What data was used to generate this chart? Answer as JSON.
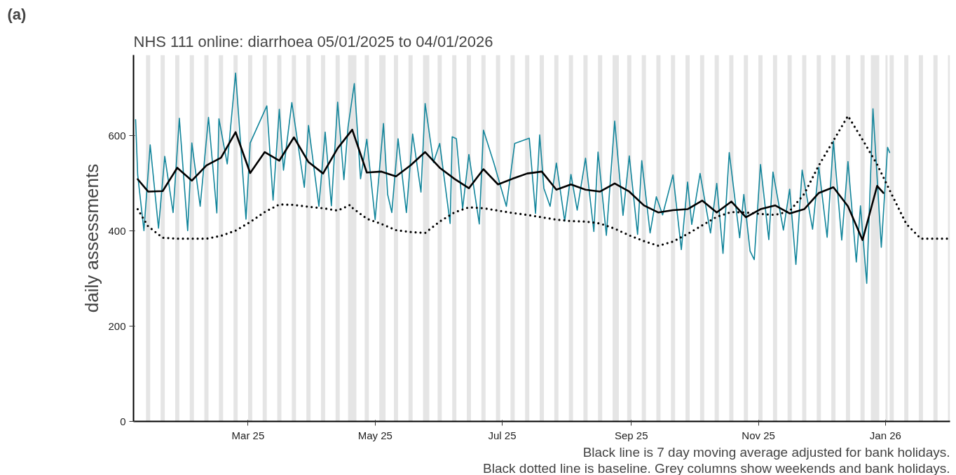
{
  "chart_data": {
    "type": "line",
    "title": "NHS 111 online: diarrhoea 05/01/2025 to 04/01/2026",
    "ylabel": "daily assessments",
    "annotations": [
      "(a)",
      "Black line is 7 day moving average adjusted for bank holidays.",
      "Black dotted line is baseline. Grey columns show weekends and bank holidays."
    ],
    "xlim": [
      "2025-01-05",
      "2026-02-01"
    ],
    "xticks": [
      {
        "value": "2025-03-01",
        "label": "Mar 25"
      },
      {
        "value": "2025-05-01",
        "label": "May 25"
      },
      {
        "value": "2025-07-01",
        "label": "Jul 25"
      },
      {
        "value": "2025-09-01",
        "label": "Sep 25"
      },
      {
        "value": "2025-11-01",
        "label": "Nov 25"
      },
      {
        "value": "2026-01-01",
        "label": "Jan 26"
      }
    ],
    "ylim": [
      0,
      770
    ],
    "yticks": [
      0,
      200,
      400,
      600
    ],
    "grid": false,
    "marker": "none",
    "series": [
      {
        "color": "#12859b",
        "line_style": "solid",
        "x": [
          "2025-01-06",
          "2025-01-07",
          "2025-01-10",
          "2025-01-13",
          "2025-01-17",
          "2025-01-20",
          "2025-01-24",
          "2025-01-27",
          "2025-01-31",
          "2025-02-02",
          "2025-02-06",
          "2025-02-10",
          "2025-02-14",
          "2025-02-15",
          "2025-02-19",
          "2025-02-23",
          "2025-02-28",
          "2025-03-02",
          "2025-03-10",
          "2025-03-13",
          "2025-03-16",
          "2025-03-18",
          "2025-03-22",
          "2025-03-28",
          "2025-03-30",
          "2025-04-04",
          "2025-04-07",
          "2025-04-10",
          "2025-04-13",
          "2025-04-16",
          "2025-04-18",
          "2025-04-21",
          "2025-04-24",
          "2025-04-27",
          "2025-05-01",
          "2025-05-05",
          "2025-05-07",
          "2025-05-09",
          "2025-05-12",
          "2025-05-16",
          "2025-05-19",
          "2025-05-23",
          "2025-05-25",
          "2025-05-29",
          "2025-06-01",
          "2025-06-06",
          "2025-06-07",
          "2025-06-09",
          "2025-06-12",
          "2025-06-15",
          "2025-06-20",
          "2025-06-22",
          "2025-06-27",
          "2025-07-03",
          "2025-07-07",
          "2025-07-14",
          "2025-07-17",
          "2025-07-19",
          "2025-07-21",
          "2025-07-24",
          "2025-07-27",
          "2025-07-31",
          "2025-08-03",
          "2025-08-06",
          "2025-08-10",
          "2025-08-14",
          "2025-08-16",
          "2025-08-20",
          "2025-08-24",
          "2025-08-28",
          "2025-08-31",
          "2025-09-04",
          "2025-09-06",
          "2025-09-10",
          "2025-09-13",
          "2025-09-16",
          "2025-09-21",
          "2025-09-25",
          "2025-09-28",
          "2025-09-30",
          "2025-10-04",
          "2025-10-09",
          "2025-10-12",
          "2025-10-15",
          "2025-10-18",
          "2025-10-23",
          "2025-10-25",
          "2025-10-28",
          "2025-10-30",
          "2025-11-02",
          "2025-11-06",
          "2025-11-08",
          "2025-11-13",
          "2025-11-16",
          "2025-11-19",
          "2025-11-22",
          "2025-11-27",
          "2025-11-30",
          "2025-12-04",
          "2025-12-07",
          "2025-12-11",
          "2025-12-14",
          "2025-12-18",
          "2025-12-20",
          "2025-12-23",
          "2025-12-26",
          "2025-12-30",
          "2026-01-02",
          "2026-01-03"
        ],
        "values": [
          634,
          518,
          401,
          581,
          406,
          557,
          439,
          637,
          401,
          585,
          452,
          639,
          438,
          636,
          541,
          732,
          425,
          585,
          663,
          465,
          656,
          528,
          670,
          492,
          622,
          452,
          608,
          453,
          671,
          508,
          619,
          710,
          510,
          593,
          424,
          626,
          477,
          439,
          594,
          439,
          604,
          482,
          668,
          544,
          584,
          416,
          598,
          594,
          447,
          561,
          415,
          612,
          543,
          452,
          584,
          595,
          437,
          602,
          490,
          452,
          543,
          421,
          519,
          444,
          553,
          399,
          566,
          391,
          631,
          433,
          558,
          393,
          548,
          396,
          472,
          434,
          518,
          361,
          503,
          414,
          521,
          396,
          500,
          353,
          565,
          386,
          477,
          358,
          340,
          540,
          382,
          524,
          402,
          488,
          330,
          528,
          404,
          534,
          387,
          589,
          381,
          546,
          335,
          453,
          290,
          657,
          366,
          576,
          565
        ]
      },
      {
        "color": "#000000",
        "line_style": "solid",
        "x": [
          "2025-01-07",
          "2025-01-12",
          "2025-01-19",
          "2025-01-26",
          "2025-02-02",
          "2025-02-09",
          "2025-02-16",
          "2025-02-23",
          "2025-03-02",
          "2025-03-09",
          "2025-03-16",
          "2025-03-23",
          "2025-03-30",
          "2025-04-06",
          "2025-04-13",
          "2025-04-20",
          "2025-04-27",
          "2025-05-04",
          "2025-05-11",
          "2025-05-18",
          "2025-05-25",
          "2025-06-01",
          "2025-06-08",
          "2025-06-15",
          "2025-06-22",
          "2025-06-29",
          "2025-07-06",
          "2025-07-13",
          "2025-07-20",
          "2025-07-27",
          "2025-08-03",
          "2025-08-10",
          "2025-08-17",
          "2025-08-24",
          "2025-08-31",
          "2025-09-07",
          "2025-09-14",
          "2025-09-21",
          "2025-09-28",
          "2025-10-05",
          "2025-10-12",
          "2025-10-19",
          "2025-10-26",
          "2025-11-02",
          "2025-11-09",
          "2025-11-16",
          "2025-11-23",
          "2025-11-30",
          "2025-12-07",
          "2025-12-14",
          "2025-12-21",
          "2025-12-28",
          "2025-12-31"
        ],
        "values": [
          509,
          483,
          484,
          533,
          506,
          538,
          554,
          608,
          522,
          566,
          548,
          597,
          545,
          521,
          574,
          613,
          523,
          525,
          515,
          538,
          566,
          533,
          510,
          490,
          530,
          498,
          510,
          521,
          525,
          487,
          498,
          487,
          483,
          500,
          483,
          454,
          439,
          444,
          446,
          464,
          439,
          462,
          429,
          446,
          454,
          437,
          446,
          480,
          492,
          452,
          381,
          495,
          480
        ]
      },
      {
        "color": "#000000",
        "line_style": "dotted",
        "x": [
          "2025-01-07",
          "2025-01-12",
          "2025-01-19",
          "2025-01-26",
          "2025-02-02",
          "2025-02-09",
          "2025-02-16",
          "2025-02-23",
          "2025-03-02",
          "2025-03-09",
          "2025-03-16",
          "2025-03-23",
          "2025-03-30",
          "2025-04-06",
          "2025-04-13",
          "2025-04-19",
          "2025-04-20",
          "2025-04-27",
          "2025-05-04",
          "2025-05-11",
          "2025-05-18",
          "2025-05-25",
          "2025-06-01",
          "2025-06-08",
          "2025-06-15",
          "2025-06-22",
          "2025-06-29",
          "2025-07-06",
          "2025-07-13",
          "2025-07-20",
          "2025-07-27",
          "2025-08-03",
          "2025-08-10",
          "2025-08-17",
          "2025-08-24",
          "2025-08-31",
          "2025-09-07",
          "2025-09-14",
          "2025-09-21",
          "2025-09-28",
          "2025-10-05",
          "2025-10-12",
          "2025-10-19",
          "2025-10-26",
          "2025-11-02",
          "2025-11-09",
          "2025-11-16",
          "2025-11-23",
          "2025-11-30",
          "2025-12-07",
          "2025-12-14",
          "2025-12-21",
          "2025-12-28",
          "2026-01-04",
          "2026-01-11",
          "2026-01-18",
          "2026-01-25",
          "2026-01-31"
        ],
        "values": [
          446,
          410,
          386,
          384,
          384,
          384,
          390,
          401,
          419,
          440,
          456,
          455,
          451,
          448,
          443,
          455,
          449,
          426,
          415,
          402,
          398,
          396,
          420,
          439,
          450,
          448,
          443,
          438,
          434,
          429,
          424,
          421,
          420,
          416,
          405,
          391,
          379,
          369,
          378,
          394,
          412,
          430,
          440,
          439,
          436,
          434,
          442,
          478,
          538,
          590,
          642,
          592,
          540,
          477,
          415,
          384,
          384,
          384
        ]
      }
    ],
    "bands": [
      {
        "axis": "x",
        "from": "2025-01-11",
        "to": "2025-01-13",
        "color": "#e5e5e5"
      },
      {
        "axis": "x",
        "from": "2025-01-18",
        "to": "2025-01-20",
        "color": "#e5e5e5"
      },
      {
        "axis": "x",
        "from": "2025-01-25",
        "to": "2025-01-27",
        "color": "#e5e5e5"
      },
      {
        "axis": "x",
        "from": "2025-02-01",
        "to": "2025-02-03",
        "color": "#e5e5e5"
      },
      {
        "axis": "x",
        "from": "2025-02-08",
        "to": "2025-02-10",
        "color": "#e5e5e5"
      },
      {
        "axis": "x",
        "from": "2025-02-15",
        "to": "2025-02-17",
        "color": "#e5e5e5"
      },
      {
        "axis": "x",
        "from": "2025-02-22",
        "to": "2025-02-24",
        "color": "#e5e5e5"
      },
      {
        "axis": "x",
        "from": "2025-03-01",
        "to": "2025-03-03",
        "color": "#e5e5e5"
      },
      {
        "axis": "x",
        "from": "2025-03-08",
        "to": "2025-03-10",
        "color": "#e5e5e5"
      },
      {
        "axis": "x",
        "from": "2025-03-15",
        "to": "2025-03-17",
        "color": "#e5e5e5"
      },
      {
        "axis": "x",
        "from": "2025-03-22",
        "to": "2025-03-24",
        "color": "#e5e5e5"
      },
      {
        "axis": "x",
        "from": "2025-03-29",
        "to": "2025-03-31",
        "color": "#e5e5e5"
      },
      {
        "axis": "x",
        "from": "2025-04-05",
        "to": "2025-04-07",
        "color": "#e5e5e5"
      },
      {
        "axis": "x",
        "from": "2025-04-12",
        "to": "2025-04-14",
        "color": "#e5e5e5"
      },
      {
        "axis": "x",
        "from": "2025-04-18",
        "to": "2025-04-22",
        "color": "#e5e5e5"
      },
      {
        "axis": "x",
        "from": "2025-04-26",
        "to": "2025-04-28",
        "color": "#e5e5e5"
      },
      {
        "axis": "x",
        "from": "2025-05-03",
        "to": "2025-05-06",
        "color": "#e5e5e5"
      },
      {
        "axis": "x",
        "from": "2025-05-10",
        "to": "2025-05-12",
        "color": "#e5e5e5"
      },
      {
        "axis": "x",
        "from": "2025-05-17",
        "to": "2025-05-19",
        "color": "#e5e5e5"
      },
      {
        "axis": "x",
        "from": "2025-05-24",
        "to": "2025-05-27",
        "color": "#e5e5e5"
      },
      {
        "axis": "x",
        "from": "2025-05-31",
        "to": "2025-06-02",
        "color": "#e5e5e5"
      },
      {
        "axis": "x",
        "from": "2025-06-07",
        "to": "2025-06-09",
        "color": "#e5e5e5"
      },
      {
        "axis": "x",
        "from": "2025-06-14",
        "to": "2025-06-16",
        "color": "#e5e5e5"
      },
      {
        "axis": "x",
        "from": "2025-06-21",
        "to": "2025-06-23",
        "color": "#e5e5e5"
      },
      {
        "axis": "x",
        "from": "2025-06-28",
        "to": "2025-06-30",
        "color": "#e5e5e5"
      },
      {
        "axis": "x",
        "from": "2025-07-05",
        "to": "2025-07-07",
        "color": "#e5e5e5"
      },
      {
        "axis": "x",
        "from": "2025-07-12",
        "to": "2025-07-14",
        "color": "#e5e5e5"
      },
      {
        "axis": "x",
        "from": "2025-07-19",
        "to": "2025-07-21",
        "color": "#e5e5e5"
      },
      {
        "axis": "x",
        "from": "2025-07-26",
        "to": "2025-07-28",
        "color": "#e5e5e5"
      },
      {
        "axis": "x",
        "from": "2025-08-02",
        "to": "2025-08-04",
        "color": "#e5e5e5"
      },
      {
        "axis": "x",
        "from": "2025-08-09",
        "to": "2025-08-11",
        "color": "#e5e5e5"
      },
      {
        "axis": "x",
        "from": "2025-08-16",
        "to": "2025-08-18",
        "color": "#e5e5e5"
      },
      {
        "axis": "x",
        "from": "2025-08-23",
        "to": "2025-08-26",
        "color": "#e5e5e5"
      },
      {
        "axis": "x",
        "from": "2025-08-30",
        "to": "2025-09-01",
        "color": "#e5e5e5"
      },
      {
        "axis": "x",
        "from": "2025-09-06",
        "to": "2025-09-08",
        "color": "#e5e5e5"
      },
      {
        "axis": "x",
        "from": "2025-09-13",
        "to": "2025-09-15",
        "color": "#e5e5e5"
      },
      {
        "axis": "x",
        "from": "2025-09-20",
        "to": "2025-09-22",
        "color": "#e5e5e5"
      },
      {
        "axis": "x",
        "from": "2025-09-27",
        "to": "2025-09-29",
        "color": "#e5e5e5"
      },
      {
        "axis": "x",
        "from": "2025-10-04",
        "to": "2025-10-06",
        "color": "#e5e5e5"
      },
      {
        "axis": "x",
        "from": "2025-10-11",
        "to": "2025-10-13",
        "color": "#e5e5e5"
      },
      {
        "axis": "x",
        "from": "2025-10-18",
        "to": "2025-10-20",
        "color": "#e5e5e5"
      },
      {
        "axis": "x",
        "from": "2025-10-25",
        "to": "2025-10-27",
        "color": "#e5e5e5"
      },
      {
        "axis": "x",
        "from": "2025-11-01",
        "to": "2025-11-03",
        "color": "#e5e5e5"
      },
      {
        "axis": "x",
        "from": "2025-11-08",
        "to": "2025-11-10",
        "color": "#e5e5e5"
      },
      {
        "axis": "x",
        "from": "2025-11-15",
        "to": "2025-11-17",
        "color": "#e5e5e5"
      },
      {
        "axis": "x",
        "from": "2025-11-22",
        "to": "2025-11-24",
        "color": "#e5e5e5"
      },
      {
        "axis": "x",
        "from": "2025-11-29",
        "to": "2025-12-01",
        "color": "#e5e5e5"
      },
      {
        "axis": "x",
        "from": "2025-12-06",
        "to": "2025-12-08",
        "color": "#e5e5e5"
      },
      {
        "axis": "x",
        "from": "2025-12-13",
        "to": "2025-12-15",
        "color": "#e5e5e5"
      },
      {
        "axis": "x",
        "from": "2025-12-20",
        "to": "2025-12-22",
        "color": "#e5e5e5"
      },
      {
        "axis": "x",
        "from": "2025-12-25",
        "to": "2025-12-29",
        "color": "#e5e5e5"
      },
      {
        "axis": "x",
        "from": "2026-01-01",
        "to": "2026-01-02",
        "color": "#e5e5e5"
      },
      {
        "axis": "x",
        "from": "2026-01-03",
        "to": "2026-01-05",
        "color": "#e5e5e5"
      },
      {
        "axis": "x",
        "from": "2026-01-10",
        "to": "2026-01-12",
        "color": "#e5e5e5"
      },
      {
        "axis": "x",
        "from": "2026-01-17",
        "to": "2026-01-19",
        "color": "#e5e5e5"
      },
      {
        "axis": "x",
        "from": "2026-01-24",
        "to": "2026-01-26",
        "color": "#e5e5e5"
      },
      {
        "axis": "x",
        "from": "2026-01-31",
        "to": "2026-02-01",
        "color": "#e5e5e5"
      }
    ]
  }
}
